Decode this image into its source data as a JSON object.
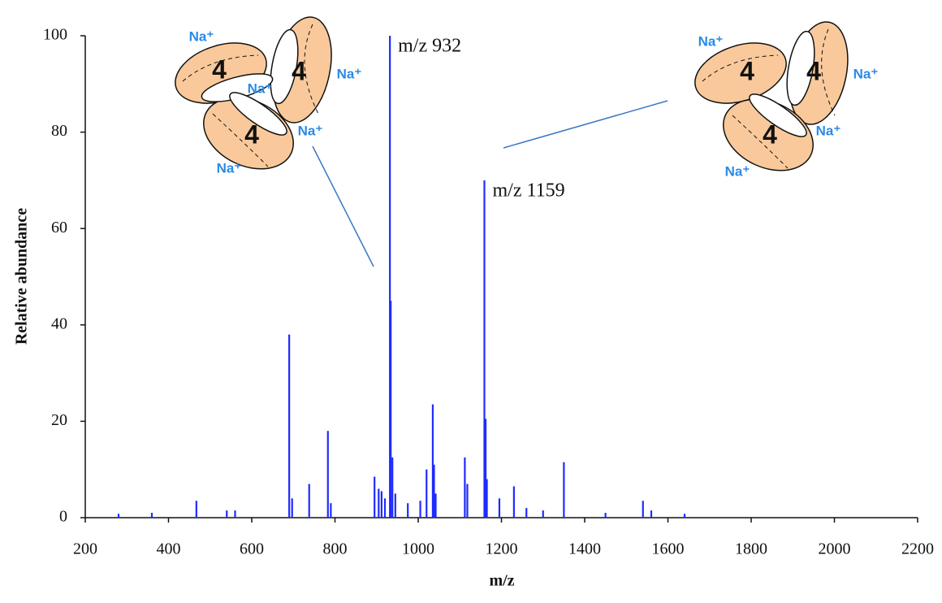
{
  "chart_data": {
    "type": "stem",
    "x_label": "m/z",
    "y_label": "Relative abundance",
    "color": "#1f2bff",
    "xlim": [
      200,
      2200
    ],
    "ylim": [
      0,
      100
    ],
    "xticks": [
      200,
      400,
      600,
      800,
      1000,
      1200,
      1400,
      1600,
      1800,
      2000,
      2200
    ],
    "yticks": [
      0,
      20,
      40,
      60,
      80,
      100
    ],
    "x": [
      280,
      360,
      467,
      540,
      560,
      690,
      697,
      738,
      783,
      790,
      895,
      905,
      912,
      920,
      932,
      934,
      938,
      945,
      975,
      1005,
      1020,
      1035,
      1038,
      1042,
      1112,
      1118,
      1159,
      1162,
      1165,
      1195,
      1230,
      1260,
      1300,
      1350,
      1450,
      1540,
      1560,
      1640
    ],
    "values": [
      0.8,
      1,
      3.5,
      1.5,
      1.5,
      38,
      4,
      7,
      18,
      3,
      8.5,
      6,
      5.5,
      4,
      100,
      45,
      12.5,
      5,
      3,
      3.5,
      10,
      23.5,
      11,
      5,
      12.5,
      7,
      70,
      20.5,
      8,
      4,
      6.5,
      2,
      1.5,
      11.5,
      1,
      3.5,
      1.5,
      0.8
    ],
    "annotations": [
      "m/z 932",
      "m/z 1159"
    ],
    "structures": [
      {
        "subunit_labels": [
          "4",
          "4",
          "4"
        ],
        "ion_labels": [
          "Na⁺",
          "Na⁺",
          "Na⁺",
          "Na⁺",
          "Na⁺"
        ]
      },
      {
        "subunit_labels": [
          "4",
          "4",
          "4"
        ],
        "ion_labels": [
          "Na⁺",
          "Na⁺",
          "Na⁺",
          "Na⁺"
        ]
      }
    ]
  }
}
